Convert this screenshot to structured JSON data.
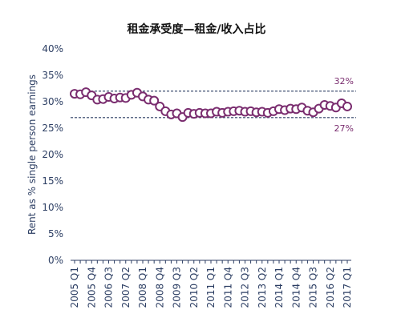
{
  "chart_data": {
    "type": "line",
    "title": "租金承受度—租金/收入占比",
    "ylabel": "Rent as % single person earnings",
    "xlabel": "",
    "ylim": [
      0,
      40
    ],
    "yticks": [
      "0%",
      "5%",
      "10%",
      "15%",
      "20%",
      "25%",
      "30%",
      "35%",
      "40%"
    ],
    "x_tick_labels": [
      "2005 Q1",
      "2005 Q4",
      "2006 Q3",
      "2007 Q2",
      "2008 Q1",
      "2008 Q4",
      "2009 Q3",
      "2010 Q2",
      "2011 Q1",
      "2011 Q4",
      "2012 Q3",
      "2013 Q2",
      "2014 Q1",
      "2014 Q4",
      "2015 Q3",
      "2016 Q2",
      "2017 Q1"
    ],
    "grid": false,
    "reference_lines": [
      {
        "value": 32,
        "label": "32%",
        "color": "#2c3e63",
        "style": "dashed"
      },
      {
        "value": 27,
        "label": "27%",
        "color": "#2c3e63",
        "style": "dashed"
      }
    ],
    "series": [
      {
        "marker_color": "#7a2d6f",
        "marker_fill": "#ffffff",
        "x": [
          "2005 Q1",
          "2005 Q2",
          "2005 Q3",
          "2005 Q4",
          "2006 Q1",
          "2006 Q2",
          "2006 Q3",
          "2006 Q4",
          "2007 Q1",
          "2007 Q2",
          "2007 Q3",
          "2007 Q4",
          "2008 Q1",
          "2008 Q2",
          "2008 Q3",
          "2008 Q4",
          "2009 Q1",
          "2009 Q2",
          "2009 Q3",
          "2009 Q4",
          "2010 Q1",
          "2010 Q2",
          "2010 Q3",
          "2010 Q4",
          "2011 Q1",
          "2011 Q2",
          "2011 Q3",
          "2011 Q4",
          "2012 Q1",
          "2012 Q2",
          "2012 Q3",
          "2012 Q4",
          "2013 Q1",
          "2013 Q2",
          "2013 Q3",
          "2013 Q4",
          "2014 Q1",
          "2014 Q2",
          "2014 Q3",
          "2014 Q4",
          "2015 Q1",
          "2015 Q2",
          "2015 Q3",
          "2015 Q4",
          "2016 Q1",
          "2016 Q2",
          "2016 Q3",
          "2016 Q4",
          "2017 Q1"
        ],
        "values": [
          31.5,
          31.4,
          31.8,
          31.2,
          30.4,
          30.5,
          30.9,
          30.6,
          30.8,
          30.7,
          31.3,
          31.7,
          31.0,
          30.4,
          30.2,
          29.1,
          28.2,
          27.6,
          27.8,
          27.1,
          27.9,
          27.7,
          27.9,
          27.8,
          27.8,
          28.1,
          27.9,
          28.1,
          28.2,
          28.3,
          28.1,
          28.2,
          28.0,
          28.1,
          27.9,
          28.2,
          28.6,
          28.4,
          28.7,
          28.6,
          28.9,
          28.3,
          28.0,
          28.7,
          29.4,
          29.2,
          28.9,
          29.7,
          29.1
        ]
      }
    ]
  }
}
